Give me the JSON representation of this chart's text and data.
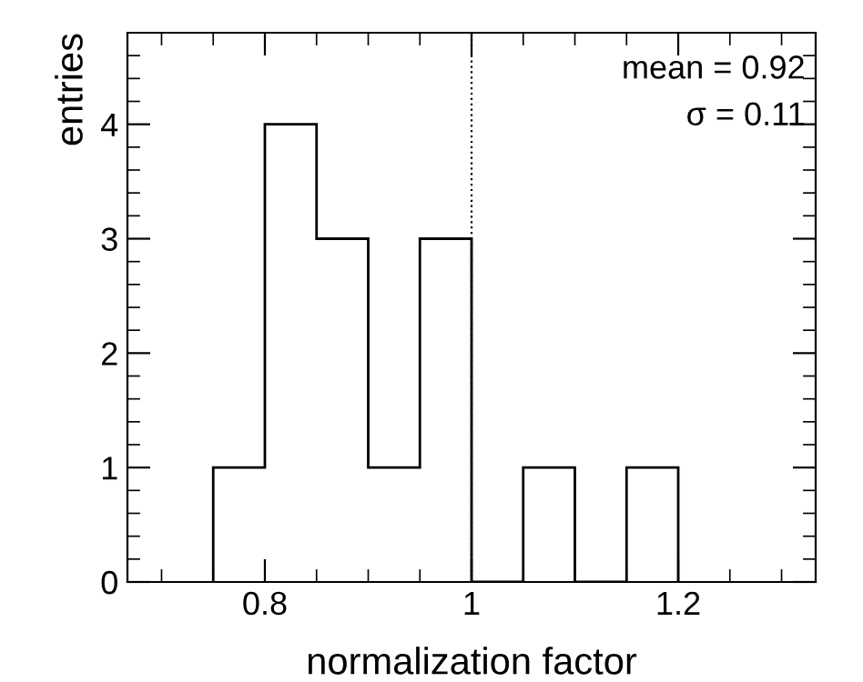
{
  "chart_data": {
    "type": "histogram",
    "xlabel": "normalization factor",
    "ylabel": "entries",
    "bins": [
      0.75,
      0.8,
      0.85,
      0.9,
      0.95,
      1.0,
      1.05,
      1.1,
      1.15,
      1.2
    ],
    "values": [
      1,
      4,
      3,
      1,
      3,
      0,
      1,
      0,
      1
    ],
    "color": "#000000",
    "xlim": [
      0.667,
      1.333
    ],
    "ylim": [
      0,
      4.8
    ],
    "xticks": [
      0.8,
      1,
      1.2
    ],
    "yticks": [
      0,
      1,
      2,
      3,
      4
    ],
    "ref_lines": [
      {
        "axis": "x",
        "value": 1,
        "line_style": "dotted",
        "color": "#000000"
      }
    ],
    "annotations": [
      "mean = 0.92",
      "σ = 0.11"
    ],
    "grid": false,
    "legend": false
  }
}
